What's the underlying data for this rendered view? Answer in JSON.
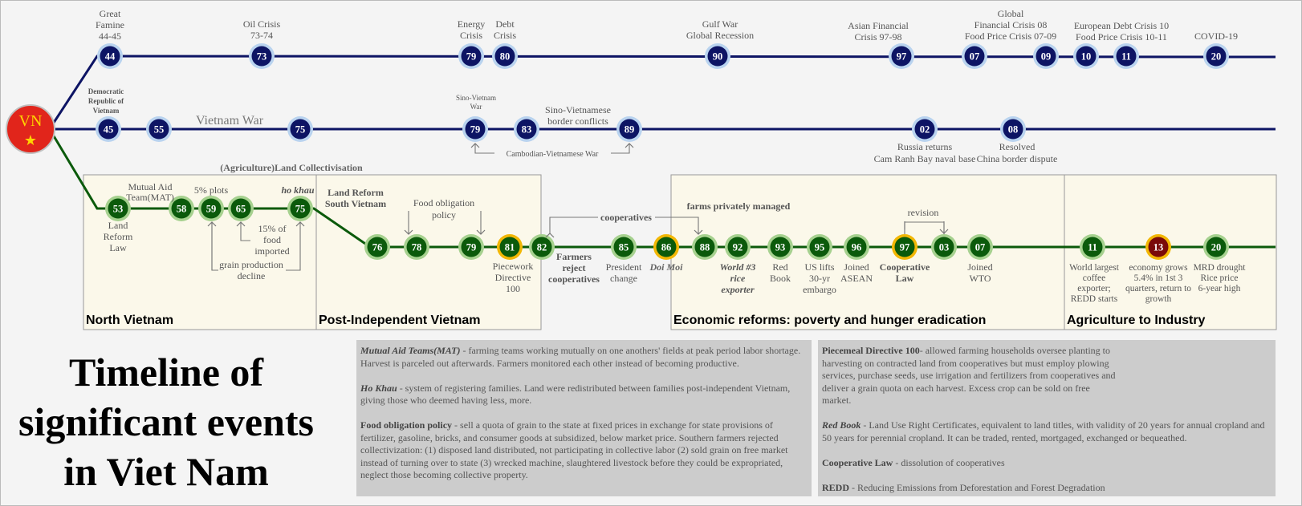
{
  "title": "Timeline of significant events in Viet Nam",
  "vn_badge": {
    "text": "VN",
    "star": "★"
  },
  "lines": {
    "crisis": {
      "color": "#0d1464",
      "events": [
        {
          "n": "44",
          "label": "Great\nFamine\n44-45"
        },
        {
          "n": "73",
          "label": "Oil Crisis\n73-74"
        },
        {
          "n": "79",
          "label": "Energy\nCrisis"
        },
        {
          "n": "80",
          "label": "Debt\nCrisis"
        },
        {
          "n": "90",
          "label": "Gulf War\nGlobal Recession"
        },
        {
          "n": "97",
          "label": "Asian Financial\nCrisis 97-98"
        },
        {
          "n": "07",
          "label": "Global\nFinancial Crisis 08\nFood Price Crisis 07-09"
        },
        {
          "n": "09",
          "label": ""
        },
        {
          "n": "10",
          "label": "European Debt Crisis 10\nFood Price Crisis 10-11"
        },
        {
          "n": "11",
          "label": ""
        },
        {
          "n": "20",
          "label": "COVID-19"
        }
      ]
    },
    "political": {
      "color": "#0d1464",
      "events": [
        {
          "n": "45",
          "label": "Democratic\nRepublic of\nVietnam"
        },
        {
          "n": "55",
          "label": ""
        },
        {
          "n": "75",
          "label": ""
        },
        {
          "n": "79",
          "label": "Sino-Vietnam\nWar"
        },
        {
          "n": "83",
          "label": ""
        },
        {
          "n": "89",
          "label": ""
        },
        {
          "n": "02",
          "label": "Russia returns\nCam Ranh Bay naval base"
        },
        {
          "n": "08",
          "label": "Resolved\nChina border dispute"
        }
      ],
      "war_label": "Vietnam War",
      "sino_border": "Sino-Vietnamese\nborder conflicts",
      "cambodia": "Cambodian-Vietnamese War"
    },
    "agri": {
      "color": "#0b5a0b",
      "events": [
        {
          "n": "53",
          "label": "Land\nReform\nLaw"
        },
        {
          "n": "58",
          "label": "Mutual Aid\nTeam(MAT)"
        },
        {
          "n": "59",
          "label": "5% plots"
        },
        {
          "n": "65",
          "label": "15% of\nfood\nimported"
        },
        {
          "n": "75",
          "label": "ho khau"
        },
        {
          "n": "76",
          "label": ""
        },
        {
          "n": "78",
          "label": ""
        },
        {
          "n": "79",
          "label": ""
        },
        {
          "n": "81",
          "label": "Piecework\nDirective\n100"
        },
        {
          "n": "82",
          "label": "Farmers\nreject\ncooperatives"
        },
        {
          "n": "85",
          "label": "President\nchange"
        },
        {
          "n": "86",
          "label": "Doi Moi"
        },
        {
          "n": "88",
          "label": ""
        },
        {
          "n": "92",
          "label": "World #3\nrice\nexporter"
        },
        {
          "n": "93",
          "label": "Red\nBook"
        },
        {
          "n": "95",
          "label": "US lifts\n30-yr\nembargo"
        },
        {
          "n": "96",
          "label": "Joined\nASEAN"
        },
        {
          "n": "97",
          "label": "Cooperative\nLaw"
        },
        {
          "n": "03",
          "label": ""
        },
        {
          "n": "07",
          "label": "Joined\nWTO"
        },
        {
          "n": "11",
          "label": "World largest\ncoffee\nexporter;\nREDD starts"
        },
        {
          "n": "13",
          "label": "economy grows\n5.4% in 1st 3\nquarters, return to\ngrowth"
        },
        {
          "n": "20",
          "label": "MRD drought\nRice price\n6-year high"
        }
      ],
      "collectivisation": "(Agriculture)Land Collectivisation",
      "grain_decline": "grain production\ndecline",
      "land_reform_south": "Land Reform\nSouth Vietnam",
      "food_obligation": "Food obligation\npolicy",
      "cooperatives": "cooperatives",
      "farms_private": "farms privately managed",
      "revision": "revision"
    }
  },
  "periods": [
    {
      "name": "North Vietnam"
    },
    {
      "name": "Post-Independent Vietnam"
    },
    {
      "name": "Economic reforms: poverty and hunger eradication"
    },
    {
      "name": "Agriculture to Industry"
    }
  ],
  "notes_left": [
    {
      "term": "Mutual Aid Teams(MAT)",
      "text": " - farming teams working mutually on one anothers' fields at peak period labor shortage. Harvest is parceled out afterwards. Farmers monitored each other instead of becoming productive."
    },
    {
      "term": "Ho Khau",
      "text": " - system of registering families. Land were redistributed between families post-independent Vietnam, giving those who deemed having less, more."
    },
    {
      "term": "Food obligation policy",
      "text": " - sell a quota of grain to the state at fixed prices in exchange for state provisions of fertilizer, gasoline, bricks, and consumer goods at subsidized, below market price. Southern farmers rejected collectivization: (1) disposed land distributed, not participating in collective labor (2) sold grain on free market instead of turning over to state (3) wrecked machine, slaughtered livestock before they could be expropriated, neglect those becoming collective property."
    }
  ],
  "notes_right": [
    {
      "term": "Piecemeal Directive 100",
      "text": "- allowed farming households oversee planting to harvesting on contracted land from cooperatives but must employ plowing services, purchase seeds, use irrigation and fertilizers from cooperatives and deliver a grain quota on each harvest. Excess crop can be sold on free market."
    },
    {
      "term": "Red Book",
      "text": " - Land Use Right Certificates, equivalent to land titles, with validity of 20 years for annual cropland and 50 years for perennial cropland. It can be traded, rented, mortgaged, exchanged or bequeathed."
    },
    {
      "term": "Cooperative Law",
      "text": " - dissolution of cooperatives"
    },
    {
      "term": "REDD",
      "text": " - Reducing Emissions from Deforestation and Forest Degradation"
    }
  ],
  "colors": {
    "navy": "#0d1464",
    "green": "#0b5a0b",
    "halo_blue": "#b9d3ef",
    "halo_green": "#a6d18f",
    "gold": "#f2b705",
    "red_badge": "#e1251b",
    "period_fill": "#fbf8ea",
    "dark_red": "#7a0a0a"
  }
}
